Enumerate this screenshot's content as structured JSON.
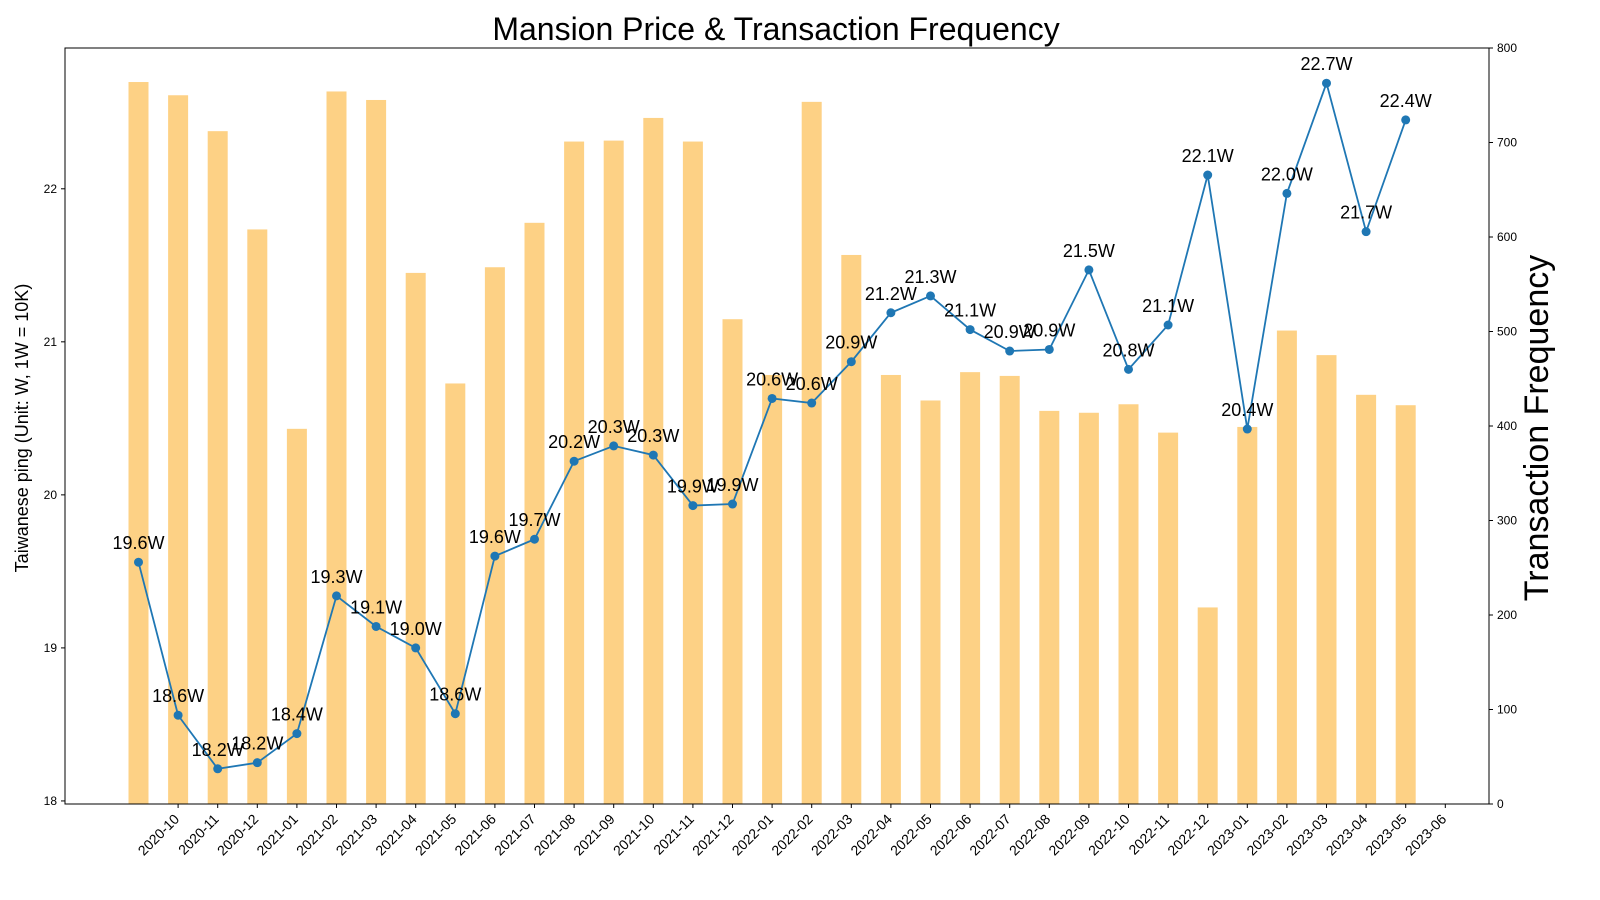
{
  "chart_data": {
    "type": "bar+line",
    "title": "Mansion Price & Transaction Frequency",
    "ylabel_left": "Taiwanese ping (Unit: W, 1W = 10K)",
    "ylabel_right": "Transaction Frequency",
    "ylim_left": [
      17.98,
      22.92
    ],
    "ylim_right": [
      0,
      800
    ],
    "yticks_left": [
      18,
      19,
      20,
      21,
      22
    ],
    "yticks_right": [
      0,
      100,
      200,
      300,
      400,
      500,
      600,
      700,
      800
    ],
    "x_tick_labels": [
      "2020-10",
      "2020-11",
      "2020-12",
      "2021-01",
      "2021-02",
      "2021-03",
      "2021-04",
      "2021-05",
      "2021-06",
      "2021-07",
      "2021-08",
      "2021-09",
      "2021-10",
      "2021-11",
      "2021-12",
      "2022-01",
      "2022-02",
      "2022-03",
      "2022-04",
      "2022-05",
      "2022-06",
      "2022-07",
      "2022-08",
      "2022-09",
      "2022-10",
      "2022-11",
      "2022-12",
      "2023-01",
      "2023-02",
      "2023-03",
      "2023-04",
      "2023-05",
      "2023-06"
    ],
    "bar_color": "#fdcf7e",
    "line_color": "#1f77b4",
    "transactions": [
      764,
      750,
      712,
      608,
      397,
      754,
      745,
      562,
      445,
      568,
      615,
      701,
      702,
      726,
      701,
      513,
      454,
      743,
      581,
      454,
      427,
      457,
      453,
      416,
      414,
      423,
      393,
      208,
      399,
      501,
      475,
      433,
      422
    ],
    "price": [
      19.56,
      18.56,
      18.21,
      18.25,
      18.44,
      19.34,
      19.14,
      19.0,
      18.57,
      19.6,
      19.71,
      20.22,
      20.32,
      20.26,
      19.93,
      19.94,
      20.63,
      20.6,
      20.87,
      21.19,
      21.3,
      21.08,
      20.94,
      20.95,
      21.47,
      20.82,
      21.11,
      22.09,
      20.43,
      21.97,
      22.69,
      21.72,
      22.45
    ],
    "price_labels": [
      "19.6W",
      "18.6W",
      "18.2W",
      "18.2W",
      "18.4W",
      "19.3W",
      "19.1W",
      "19.0W",
      "18.6W",
      "19.6W",
      "19.7W",
      "20.2W",
      "20.3W",
      "20.3W",
      "19.9W",
      "19.9W",
      "20.6W",
      "20.6W",
      "20.9W",
      "21.2W",
      "21.3W",
      "21.1W",
      "20.9W",
      "20.9W",
      "21.5W",
      "20.8W",
      "21.1W",
      "22.1W",
      "20.4W",
      "22.0W",
      "22.7W",
      "21.7W",
      "22.4W"
    ]
  }
}
